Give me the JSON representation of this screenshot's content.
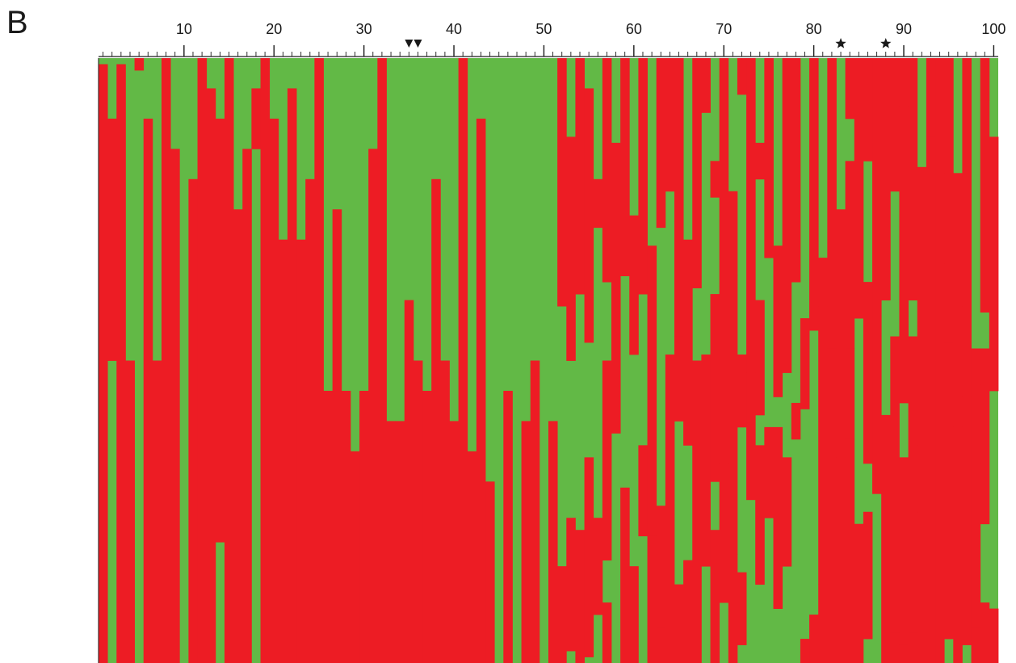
{
  "panel_label": "B",
  "colors": {
    "green": "#62b946",
    "red": "#ed1c24",
    "axis": "#1a1a1a"
  },
  "chart_data": {
    "type": "heatmap",
    "title": "",
    "xlabel": "",
    "ylabel": "",
    "xlim": [
      0,
      100
    ],
    "x_ticks": [
      10,
      20,
      30,
      40,
      50,
      60,
      70,
      80,
      90,
      100
    ],
    "x_tick_labels": [
      "10",
      "20",
      "30",
      "40",
      "50",
      "60",
      "70",
      "80",
      "90",
      "100"
    ],
    "n_rows": 100,
    "values_legend": {
      "0": "green",
      "1": "red"
    },
    "markers": [
      {
        "shape": "triangle",
        "x": 35
      },
      {
        "shape": "triangle",
        "x": 36
      },
      {
        "shape": "star",
        "x": 83
      },
      {
        "shape": "star",
        "x": 88
      }
    ],
    "columns": [
      [
        [
          0,
          1
        ]
      ],
      [
        [
          0,
          10
        ],
        [
          10,
          50
        ],
        [
          50,
          100
        ]
      ],
      [
        [
          0,
          1
        ],
        [
          1,
          100
        ]
      ],
      [
        [
          0,
          50
        ],
        [
          50,
          100
        ]
      ],
      [
        [
          0,
          0
        ],
        [
          1,
          2
        ],
        [
          2,
          100
        ]
      ],
      [
        [
          0,
          10
        ],
        [
          10,
          100
        ]
      ],
      [
        [
          0,
          50
        ],
        [
          50,
          100
        ]
      ],
      [
        [
          0,
          0
        ],
        [
          2,
          100
        ]
      ],
      [
        [
          0,
          15
        ],
        [
          15,
          100
        ]
      ],
      [
        [
          0,
          100
        ]
      ],
      [
        [
          0,
          20
        ],
        [
          20,
          100
        ]
      ],
      [
        [
          0,
          0
        ],
        [
          1,
          100
        ]
      ],
      [
        [
          0,
          5
        ],
        [
          5,
          100
        ]
      ],
      [
        [
          0,
          10
        ],
        [
          10,
          80
        ],
        [
          80,
          100
        ]
      ],
      [
        [
          0,
          0
        ],
        [
          5,
          100
        ]
      ],
      [
        [
          0,
          25
        ],
        [
          25,
          100
        ]
      ],
      [
        [
          0,
          15
        ],
        [
          15,
          100
        ]
      ],
      [
        [
          0,
          5
        ],
        [
          5,
          15
        ],
        [
          15,
          100
        ]
      ],
      [
        [
          0,
          0
        ],
        [
          1,
          100
        ]
      ],
      [
        [
          0,
          10
        ],
        [
          10,
          100
        ]
      ],
      [
        [
          0,
          30
        ],
        [
          30,
          100
        ]
      ],
      [
        [
          0,
          5
        ],
        [
          5,
          100
        ]
      ],
      [
        [
          0,
          30
        ],
        [
          30,
          100
        ]
      ],
      [
        [
          0,
          20
        ],
        [
          20,
          100
        ]
      ],
      [
        [
          0,
          0
        ],
        [
          1,
          100
        ]
      ],
      [
        [
          0,
          55
        ],
        [
          55,
          100
        ]
      ],
      [
        [
          0,
          25
        ],
        [
          25,
          100
        ]
      ],
      [
        [
          0,
          55
        ],
        [
          55,
          100
        ]
      ],
      [
        [
          0,
          65
        ],
        [
          65,
          100
        ]
      ],
      [
        [
          0,
          55
        ],
        [
          55,
          100
        ]
      ],
      [
        [
          0,
          15
        ],
        [
          15,
          100
        ]
      ],
      [
        [
          0,
          0
        ],
        [
          1,
          100
        ]
      ],
      [
        [
          0,
          60
        ],
        [
          60,
          100
        ]
      ],
      [
        [
          0,
          60
        ],
        [
          60,
          100
        ]
      ],
      [
        [
          0,
          40
        ],
        [
          40,
          100
        ]
      ],
      [
        [
          0,
          50
        ],
        [
          50,
          100
        ]
      ],
      [
        [
          0,
          55
        ],
        [
          55,
          100
        ]
      ],
      [
        [
          0,
          20
        ],
        [
          20,
          100
        ]
      ],
      [
        [
          0,
          50
        ],
        [
          50,
          100
        ]
      ],
      [
        [
          0,
          60
        ],
        [
          60,
          100
        ]
      ],
      [
        [
          0,
          0
        ],
        [
          30,
          100
        ]
      ],
      [
        [
          0,
          65
        ],
        [
          65,
          100
        ]
      ],
      [
        [
          0,
          10
        ],
        [
          10,
          100
        ]
      ],
      [
        [
          0,
          70
        ],
        [
          70,
          100
        ]
      ],
      [
        [
          0,
          100
        ]
      ],
      [
        [
          0,
          55
        ],
        [
          55,
          100
        ]
      ],
      [
        [
          0,
          100
        ]
      ],
      [
        [
          0,
          60
        ],
        [
          60,
          100
        ]
      ],
      [
        [
          0,
          50
        ],
        [
          50,
          100
        ]
      ],
      [
        [
          0,
          100
        ]
      ],
      [
        [
          0,
          60
        ],
        [
          60,
          100
        ]
      ]
    ]
  }
}
